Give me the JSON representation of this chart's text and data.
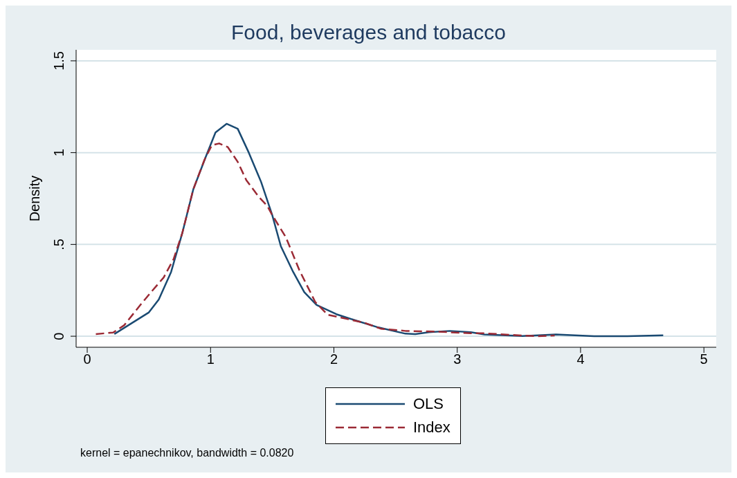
{
  "chart_data": {
    "type": "line",
    "title": "Food, beverages and tobacco",
    "xlabel": null,
    "ylabel": "Density",
    "series": [
      {
        "name": "OLS",
        "color": "#1a4a72",
        "line_style": "solid",
        "x": [
          0.22,
          0.5,
          0.58,
          0.68,
          0.77,
          0.86,
          0.96,
          1.04,
          1.13,
          1.22,
          1.31,
          1.41,
          1.5,
          1.57,
          1.67,
          1.76,
          1.86,
          2.02,
          2.11,
          2.36,
          2.58,
          2.66,
          2.77,
          2.94,
          3.11,
          3.22,
          3.53,
          3.8,
          4.11,
          4.38,
          4.67
        ],
        "values": [
          0.012,
          0.13,
          0.2,
          0.35,
          0.56,
          0.8,
          0.975,
          1.11,
          1.157,
          1.13,
          1.0,
          0.84,
          0.66,
          0.49,
          0.35,
          0.24,
          0.17,
          0.12,
          0.1,
          0.048,
          0.014,
          0.012,
          0.022,
          0.029,
          0.022,
          0.01,
          0.001,
          0.01,
          0,
          0,
          0.005
        ]
      },
      {
        "name": "Index",
        "color": "#9b2a35",
        "line_style": "dashed",
        "x": [
          0.07,
          0.21,
          0.3,
          0.43,
          0.53,
          0.62,
          0.7,
          0.77,
          0.86,
          0.95,
          1.01,
          1.07,
          1.14,
          1.22,
          1.29,
          1.39,
          1.46,
          1.5,
          1.61,
          1.72,
          1.85,
          1.95,
          2.04,
          2.25,
          2.38,
          2.58,
          2.84,
          3.11,
          3.22,
          3.53,
          3.65,
          3.79
        ],
        "values": [
          0.012,
          0.02,
          0.06,
          0.17,
          0.25,
          0.32,
          0.42,
          0.56,
          0.8,
          0.96,
          1.04,
          1.05,
          1.03,
          0.95,
          0.85,
          0.76,
          0.71,
          0.66,
          0.54,
          0.36,
          0.185,
          0.117,
          0.104,
          0.073,
          0.041,
          0.029,
          0.025,
          0.016,
          0.016,
          0.004,
          0,
          0.004
        ]
      }
    ],
    "xlim": [
      -0.09,
      5.1
    ],
    "xticks": [
      0,
      1,
      2,
      3,
      4,
      5
    ],
    "ylim": [
      -0.06,
      1.56
    ],
    "yticks": [
      0,
      {
        "value": 0.5,
        "label": ".5"
      },
      1,
      1.5
    ],
    "grid": "y",
    "legend": "bottom",
    "marker": "none",
    "annotations": [
      "kernel = epanechnikov, bandwidth = 0.0820"
    ]
  }
}
